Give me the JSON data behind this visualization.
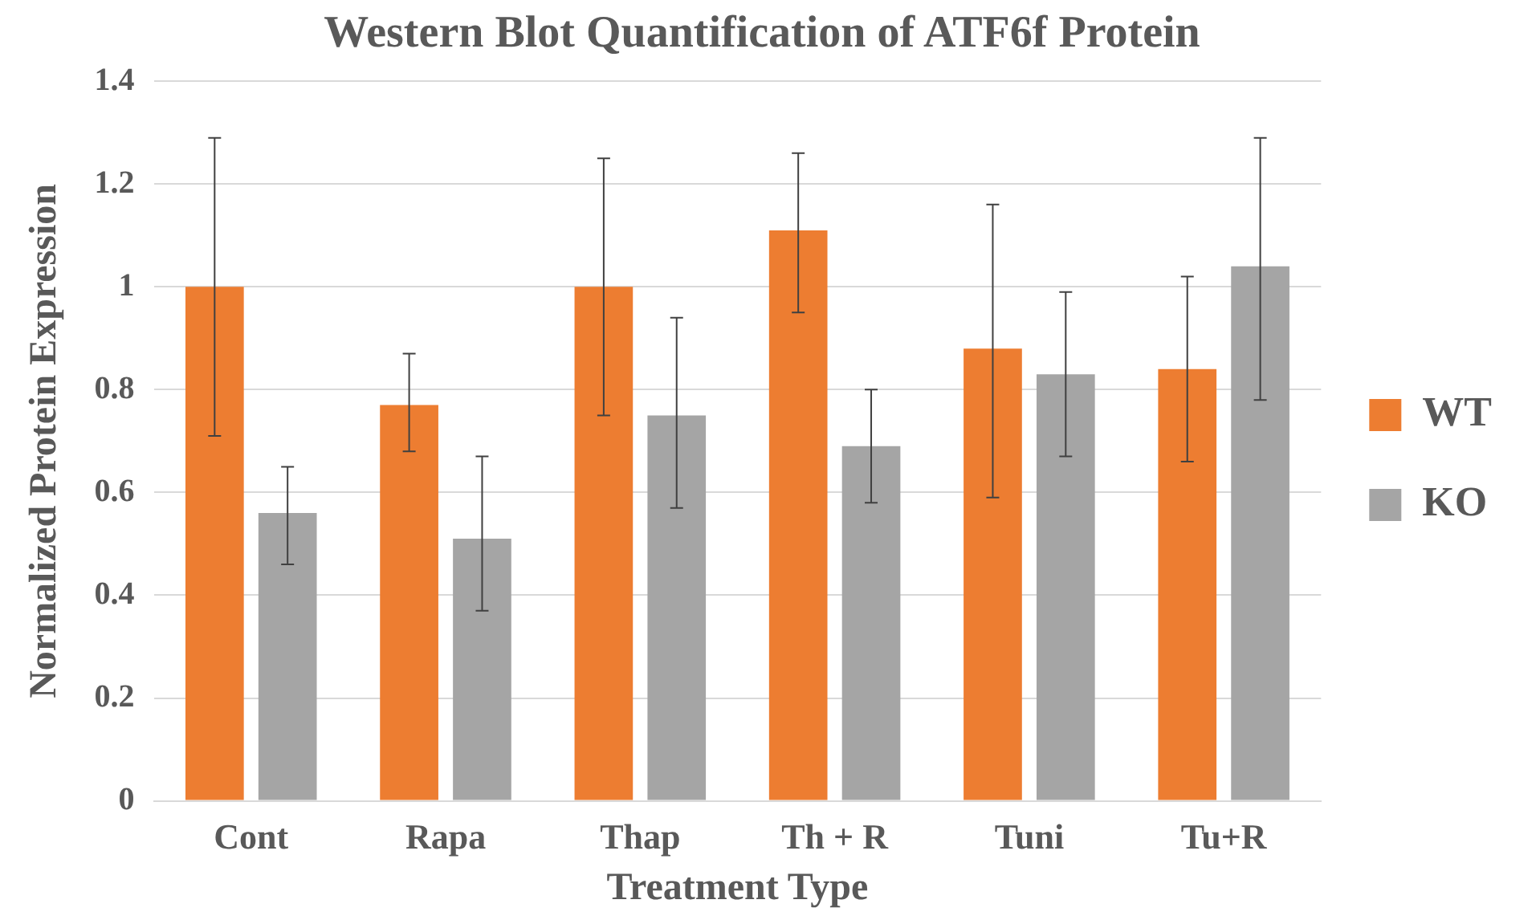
{
  "chart_data": {
    "type": "bar",
    "title": "Western Blot Quantification of ATF6f Protein",
    "xlabel": "Treatment Type",
    "ylabel": "Normalized Protein Expression",
    "categories": [
      "Cont",
      "Rapa",
      "Thap",
      "Th + R",
      "Tuni",
      "Tu+R"
    ],
    "series": [
      {
        "name": "WT",
        "color": "#ed7d31",
        "values": [
          1.0,
          0.77,
          1.0,
          1.11,
          0.88,
          0.84
        ],
        "errors": [
          [
            0.71,
            1.29
          ],
          [
            0.68,
            0.87
          ],
          [
            0.75,
            1.25
          ],
          [
            0.95,
            1.26
          ],
          [
            0.59,
            1.16
          ],
          [
            0.66,
            1.02
          ]
        ]
      },
      {
        "name": "KO",
        "color": "#a5a5a5",
        "values": [
          0.56,
          0.51,
          0.75,
          0.69,
          0.83,
          1.04
        ],
        "errors": [
          [
            0.46,
            0.65
          ],
          [
            0.37,
            0.67
          ],
          [
            0.57,
            0.94
          ],
          [
            0.58,
            0.8
          ],
          [
            0.67,
            0.99
          ],
          [
            0.78,
            1.29
          ]
        ]
      }
    ],
    "ylim": [
      0,
      1.4
    ],
    "yticks": [
      0,
      0.2,
      0.4,
      0.6,
      0.8,
      1,
      1.2,
      1.4
    ],
    "grid": "y",
    "legend": "right"
  }
}
